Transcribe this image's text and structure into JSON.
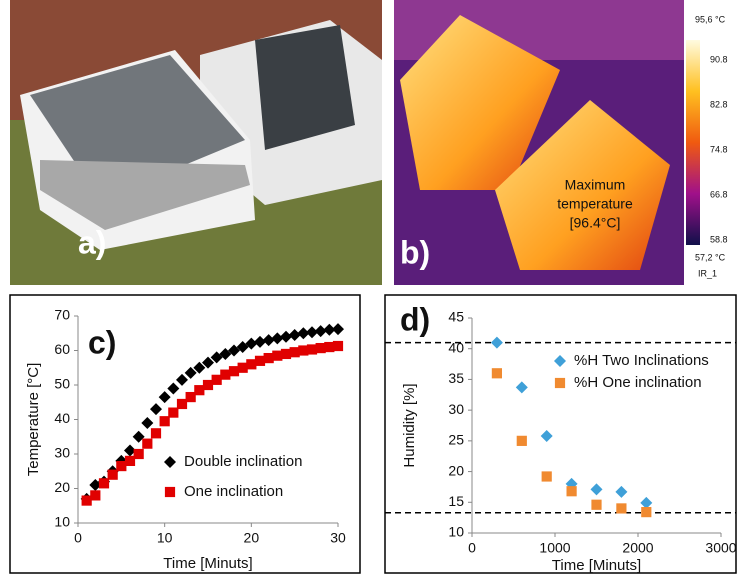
{
  "photos": {
    "a": {
      "label": "a)"
    },
    "b": {
      "label": "b)",
      "annotation": [
        "Maximum",
        "temperature",
        "[96.4°C]"
      ],
      "colorbar": {
        "max": "95,6 °C",
        "ticks": [
          "90.8",
          "82.8",
          "74.8",
          "66.8",
          "58.8"
        ],
        "min": "57,2 °C",
        "name": "IR_1"
      }
    }
  },
  "chart_data": [
    {
      "type": "scatter",
      "panel_label": "c)",
      "x_label": "Time [Minuts]",
      "y_label": "Temperature [°C]",
      "xlim": [
        0,
        30
      ],
      "xticks": [
        0,
        10,
        20,
        30
      ],
      "ylim": [
        10,
        70
      ],
      "yticks": [
        10,
        20,
        30,
        40,
        50,
        60,
        70
      ],
      "legend": "lower right",
      "x": [
        1,
        2,
        3,
        4,
        5,
        6,
        7,
        8,
        9,
        10,
        11,
        12,
        13,
        14,
        15,
        16,
        17,
        18,
        19,
        20,
        21,
        22,
        23,
        24,
        25,
        26,
        27,
        28,
        29,
        30
      ],
      "series": [
        {
          "name": "Double inclination",
          "color": "#000000",
          "marker": "diamond",
          "values": [
            17,
            21,
            22,
            25,
            28,
            31,
            35,
            39,
            43,
            46.5,
            49,
            51.5,
            53.5,
            55,
            56.5,
            58,
            59,
            60,
            61,
            62,
            62.5,
            63,
            63.5,
            64,
            64.5,
            65,
            65.3,
            65.6,
            66,
            66.2
          ]
        },
        {
          "name": "One inclination",
          "color": "#e00000",
          "marker": "square",
          "values": [
            16.5,
            18,
            21.5,
            24,
            26.5,
            28,
            30,
            33,
            36,
            39.5,
            42,
            44.5,
            46.5,
            48.5,
            50,
            51.5,
            53,
            54,
            55,
            56,
            57,
            57.8,
            58.5,
            59,
            59.5,
            60,
            60.3,
            60.7,
            61,
            61.3
          ]
        }
      ]
    },
    {
      "type": "scatter",
      "panel_label": "d)",
      "x_label": "Time [Minuts]",
      "y_label": "Humidity [%]",
      "xlim": [
        0,
        3000
      ],
      "xticks": [
        0,
        1000,
        2000,
        3000
      ],
      "ylim": [
        10,
        45
      ],
      "yticks": [
        10,
        15,
        20,
        25,
        30,
        35,
        40,
        45
      ],
      "legend": "upper right",
      "hlines": [
        41,
        13.3
      ],
      "x": [
        300,
        600,
        900,
        1200,
        1500,
        1800,
        2100
      ],
      "series": [
        {
          "name": "%H Two Inclinations",
          "color": "#3fa0d8",
          "marker": "diamond",
          "values": [
            41,
            33.7,
            25.8,
            18,
            17.1,
            16.7,
            14.9
          ]
        },
        {
          "name": "%H One inclination",
          "color": "#f08a30",
          "marker": "square",
          "values": [
            36,
            25,
            19.2,
            16.8,
            14.6,
            14,
            13.4
          ]
        }
      ]
    }
  ]
}
